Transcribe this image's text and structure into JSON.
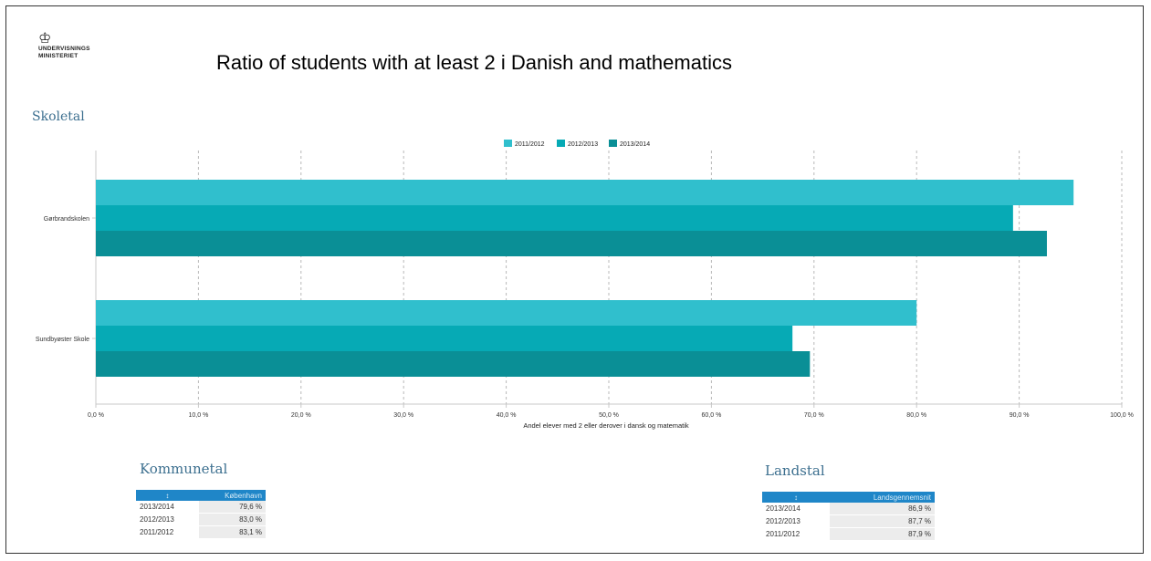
{
  "logo": {
    "line1": "UNDERVISNINGS",
    "line2": "MINISTERIET",
    "icon": "crown-icon"
  },
  "title": "Ratio of students with at least 2 i Danish and mathematics",
  "sections": {
    "school": "Skoletal",
    "municipal": "Kommunetal",
    "national": "Landstal"
  },
  "colors": {
    "s2011": "#30bfcd",
    "s2012": "#06aab5",
    "s2013": "#0a8f96",
    "header": "#1f86c8",
    "section": "#3c6f8f"
  },
  "chart_data": {
    "type": "bar",
    "orientation": "horizontal",
    "categories": [
      "Gørbrandskolen",
      "Sundbyøster Skole"
    ],
    "category_labels": [
      "Gørbrandskolen",
      "Sundbyøster Skole"
    ],
    "series": [
      {
        "name": "2011/2012",
        "values": [
          95.3,
          80.0
        ]
      },
      {
        "name": "2012/2013",
        "values": [
          89.4,
          67.9
        ]
      },
      {
        "name": "2013/2014",
        "values": [
          92.7,
          69.6
        ]
      }
    ],
    "xlim": [
      0,
      100
    ],
    "xticks": [
      "0,0 %",
      "10,0 %",
      "20,0 %",
      "30,0 %",
      "40,0 %",
      "50,0 %",
      "60,0 %",
      "70,0 %",
      "80,0 %",
      "90,0 %",
      "100,0 %"
    ],
    "xlabel": "Andel elever med 2 eller derover i dansk og matematik",
    "legend_position": "top-center",
    "grid": true
  },
  "municipal_table": {
    "headers": [
      "↕",
      "København"
    ],
    "rows": [
      {
        "year": "2013/2014",
        "value": "79,6 %"
      },
      {
        "year": "2012/2013",
        "value": "83,0 %"
      },
      {
        "year": "2011/2012",
        "value": "83,1 %"
      }
    ]
  },
  "national_table": {
    "headers": [
      "↕",
      "Landsgennemsnit"
    ],
    "rows": [
      {
        "year": "2013/2014",
        "value": "86,9 %"
      },
      {
        "year": "2012/2013",
        "value": "87,7 %"
      },
      {
        "year": "2011/2012",
        "value": "87,9 %"
      }
    ]
  }
}
